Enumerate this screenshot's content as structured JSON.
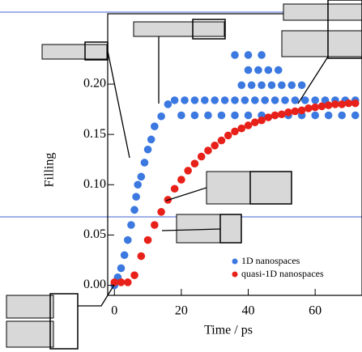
{
  "chart_data": {
    "type": "scatter",
    "x_label": "Time / ps",
    "y_label": "Filling",
    "xlim": [
      -2,
      74
    ],
    "xticks": [
      0,
      20,
      40,
      60
    ],
    "ylim": [
      -0.01,
      0.27
    ],
    "yticks": [
      {
        "value": 0,
        "label": "0.00"
      },
      0.05,
      {
        "value": 0.1,
        "label": "0.10"
      },
      0.15,
      {
        "value": 0.2,
        "label": "0.20"
      }
    ],
    "legend": "lower right",
    "series": [
      {
        "name": "1D nanospaces",
        "color": "#3b78e0",
        "x": [
          0,
          1,
          2,
          3,
          4,
          5,
          6,
          6.5,
          7,
          8,
          9,
          10,
          11,
          12,
          14,
          16,
          18,
          21,
          24,
          27,
          30,
          33,
          36,
          39,
          42,
          45,
          48,
          51,
          54,
          57,
          60,
          63,
          66,
          69,
          72,
          20,
          24,
          28,
          32,
          36,
          40,
          44,
          48,
          52,
          56,
          60,
          64,
          68,
          72,
          38,
          41,
          44,
          47,
          50,
          53,
          56,
          40,
          43,
          46,
          49,
          36,
          40,
          44
        ],
        "values": [
          0,
          0.008,
          0.017,
          0.03,
          0.045,
          0.06,
          0.075,
          0.088,
          0.1,
          0.108,
          0.122,
          0.135,
          0.145,
          0.158,
          0.168,
          0.18,
          0.184,
          0.184,
          0.184,
          0.184,
          0.184,
          0.184,
          0.184,
          0.184,
          0.184,
          0.184,
          0.184,
          0.184,
          0.184,
          0.184,
          0.184,
          0.184,
          0.184,
          0.184,
          0.184,
          0.169,
          0.169,
          0.169,
          0.169,
          0.169,
          0.169,
          0.169,
          0.169,
          0.169,
          0.169,
          0.169,
          0.169,
          0.169,
          0.169,
          0.199,
          0.199,
          0.199,
          0.199,
          0.199,
          0.199,
          0.199,
          0.214,
          0.214,
          0.214,
          0.214,
          0.229,
          0.229,
          0.229
        ]
      },
      {
        "name": "quasi-1D nanospaces",
        "color": "#e8201a",
        "x": [
          0,
          2,
          4,
          6,
          8,
          10,
          12,
          14,
          16,
          18,
          20,
          22,
          24,
          26,
          28,
          30,
          32,
          34,
          36,
          38,
          40,
          42,
          44,
          46,
          48,
          50,
          52,
          54,
          56,
          58,
          60,
          62,
          64,
          66,
          68,
          70,
          72
        ],
        "values": [
          0.003,
          0.003,
          0.003,
          0.01,
          0.029,
          0.045,
          0.06,
          0.073,
          0.085,
          0.096,
          0.105,
          0.114,
          0.121,
          0.128,
          0.134,
          0.139,
          0.144,
          0.149,
          0.153,
          0.156,
          0.159,
          0.162,
          0.164,
          0.167,
          0.169,
          0.17,
          0.172,
          0.173,
          0.174,
          0.176,
          0.177,
          0.178,
          0.179,
          0.18,
          0.18,
          0.181,
          0.181
        ]
      }
    ]
  }
}
